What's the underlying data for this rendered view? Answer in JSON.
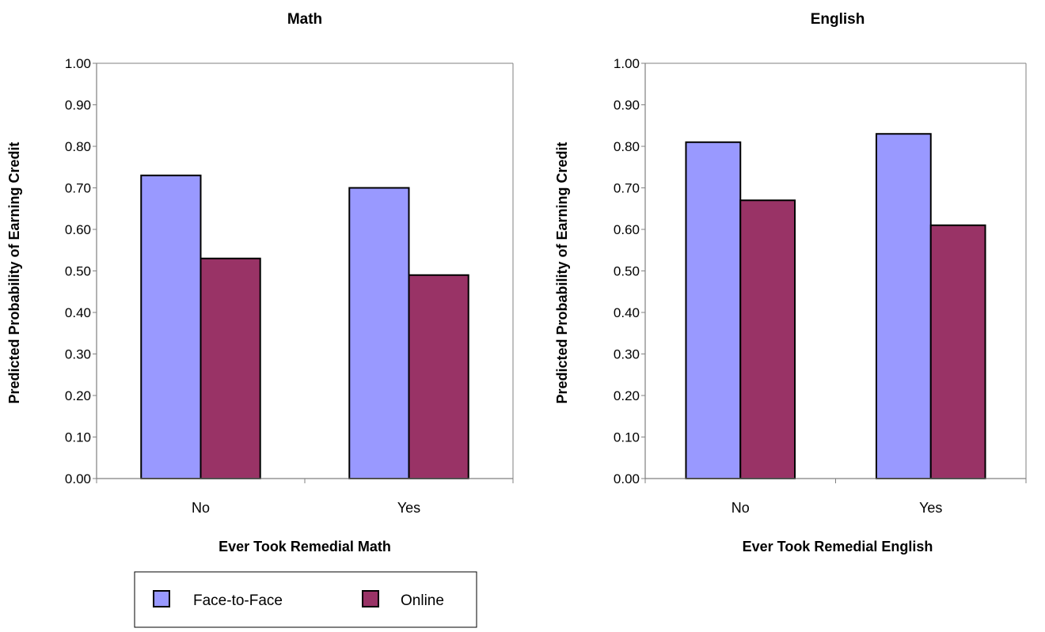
{
  "colors": {
    "face_to_face": "#9999ff",
    "online": "#993366",
    "axis": "#808080",
    "bar_outline": "#000000"
  },
  "legend": {
    "items": [
      {
        "label": "Face-to-Face",
        "color": "#9999ff"
      },
      {
        "label": "Online",
        "color": "#993366"
      }
    ]
  },
  "chart_data": [
    {
      "type": "bar",
      "title": "Math",
      "xlabel": "Ever Took Remedial Math",
      "ylabel": "Predicted Probability of Earning Credit",
      "categories": [
        "No",
        "Yes"
      ],
      "ylim": [
        0,
        1
      ],
      "yticks": [
        "0.00",
        "0.10",
        "0.20",
        "0.30",
        "0.40",
        "0.50",
        "0.60",
        "0.70",
        "0.80",
        "0.90",
        "1.00"
      ],
      "grid": false,
      "series": [
        {
          "name": "Face-to-Face",
          "values": [
            0.73,
            0.7
          ]
        },
        {
          "name": "Online",
          "values": [
            0.53,
            0.49
          ]
        }
      ]
    },
    {
      "type": "bar",
      "title": "English",
      "xlabel": "Ever Took Remedial English",
      "ylabel": "Predicted Probability of Earning Credit",
      "categories": [
        "No",
        "Yes"
      ],
      "ylim": [
        0,
        1
      ],
      "yticks": [
        "0.00",
        "0.10",
        "0.20",
        "0.30",
        "0.40",
        "0.50",
        "0.60",
        "0.70",
        "0.80",
        "0.90",
        "1.00"
      ],
      "grid": false,
      "series": [
        {
          "name": "Face-to-Face",
          "values": [
            0.81,
            0.83
          ]
        },
        {
          "name": "Online",
          "values": [
            0.67,
            0.61
          ]
        }
      ]
    }
  ]
}
